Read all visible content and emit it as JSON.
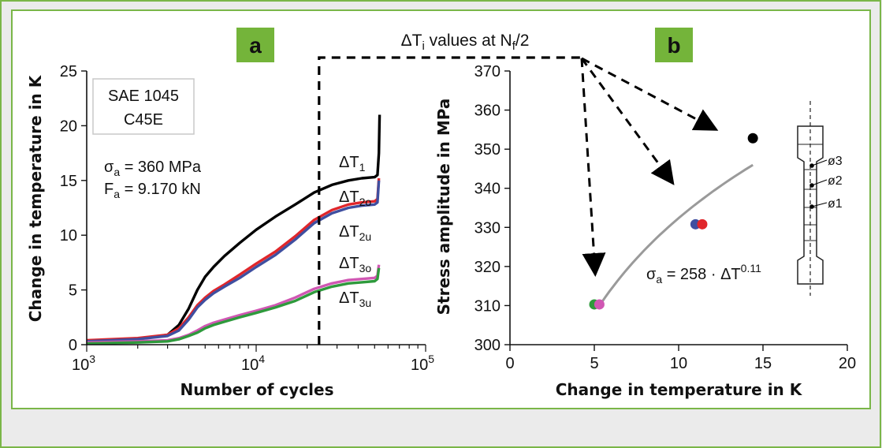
{
  "figure": {
    "header": "ΔTi values at Nf/2",
    "colors": {
      "frame_border": "#7ab648",
      "panel_bg": "#ffffff",
      "outer_bg": "#ebebeb",
      "badge_bg": "#74b43a",
      "badge_text": "#ffffff",
      "black": "#000000",
      "red": "#e0262b",
      "blue": "#3f4fa0",
      "green": "#2e9a3c",
      "magenta": "#d057b3",
      "fit_line": "#9a9a9a"
    }
  },
  "panel_a": {
    "badge": "a",
    "material_line1": "SAE 1045",
    "material_line2": "C45E",
    "sigma_text": "σa = 360 MPa",
    "force_text": "Fa = 9.170 kN"
  },
  "panel_b": {
    "badge": "b",
    "specimen_labels": [
      "ø3",
      "ø2",
      "ø1"
    ]
  },
  "chart_data": [
    {
      "type": "line",
      "panel": "a",
      "xlabel": "Number of cycles",
      "ylabel": "Change in temperature in K",
      "x_scale": "log",
      "xlim": [
        1000,
        100000
      ],
      "ylim": [
        0,
        25
      ],
      "x_ticks": [
        1000,
        10000,
        100000
      ],
      "x_tick_labels": [
        [
          "10",
          "3"
        ],
        [
          "10",
          "4"
        ],
        [
          "10",
          "5"
        ]
      ],
      "y_ticks": [
        0,
        5,
        10,
        15,
        20,
        25
      ],
      "vertical_marker_x": 23500,
      "series": [
        {
          "name": "ΔT1",
          "color_key": "black",
          "x": [
            1000,
            2000,
            3000,
            3500,
            4000,
            4500,
            5000,
            5600,
            6500,
            8000,
            10000,
            13000,
            17000,
            22000,
            28000,
            35000,
            42000,
            50000,
            52000,
            53000,
            53500
          ],
          "y": [
            0.3,
            0.5,
            0.9,
            1.8,
            3.3,
            5.0,
            6.2,
            7.1,
            8.1,
            9.3,
            10.5,
            11.7,
            12.8,
            13.9,
            14.6,
            15.0,
            15.2,
            15.3,
            15.5,
            17.5,
            21.0
          ]
        },
        {
          "name": "ΔT2o",
          "color_key": "red",
          "x": [
            1000,
            2000,
            3000,
            3500,
            4000,
            4500,
            5000,
            5600,
            6500,
            8000,
            10000,
            13000,
            17000,
            22000,
            28000,
            35000,
            42000,
            50000,
            52000,
            53000
          ],
          "y": [
            0.4,
            0.6,
            0.9,
            1.5,
            2.5,
            3.6,
            4.3,
            4.9,
            5.5,
            6.4,
            7.4,
            8.5,
            9.9,
            11.4,
            12.3,
            12.8,
            13.0,
            13.1,
            13.3,
            15.2
          ]
        },
        {
          "name": "ΔT2u",
          "color_key": "blue",
          "x": [
            1000,
            2000,
            3000,
            3500,
            4000,
            4500,
            5000,
            5600,
            6500,
            8000,
            10000,
            13000,
            17000,
            22000,
            28000,
            35000,
            42000,
            50000,
            52000,
            53000
          ],
          "y": [
            0.3,
            0.5,
            0.8,
            1.3,
            2.3,
            3.4,
            4.1,
            4.7,
            5.3,
            6.1,
            7.1,
            8.2,
            9.6,
            11.1,
            12.0,
            12.5,
            12.7,
            12.8,
            13.0,
            15.0
          ]
        },
        {
          "name": "ΔT3o",
          "color_key": "magenta",
          "x": [
            1000,
            2000,
            3000,
            3500,
            4000,
            4500,
            5000,
            5600,
            6500,
            8000,
            10000,
            13000,
            17000,
            22000,
            28000,
            35000,
            42000,
            50000,
            52000,
            53000
          ],
          "y": [
            0.2,
            0.3,
            0.4,
            0.6,
            0.9,
            1.3,
            1.7,
            2.0,
            2.3,
            2.7,
            3.1,
            3.6,
            4.3,
            5.1,
            5.6,
            5.9,
            6.0,
            6.1,
            6.3,
            7.3
          ]
        },
        {
          "name": "ΔT3u",
          "color_key": "green",
          "x": [
            1000,
            2000,
            3000,
            3500,
            4000,
            4500,
            5000,
            5600,
            6500,
            8000,
            10000,
            13000,
            17000,
            22000,
            28000,
            35000,
            42000,
            50000,
            52000,
            53000
          ],
          "y": [
            0.1,
            0.2,
            0.3,
            0.5,
            0.8,
            1.1,
            1.5,
            1.8,
            2.1,
            2.5,
            2.9,
            3.4,
            4.0,
            4.8,
            5.3,
            5.6,
            5.7,
            5.8,
            6.0,
            7.0
          ]
        }
      ]
    },
    {
      "type": "scatter",
      "panel": "b",
      "xlabel": "Change in temperature in K",
      "ylabel": "Stress amplitude in MPa",
      "xlim": [
        0,
        20
      ],
      "ylim": [
        300,
        370
      ],
      "x_ticks": [
        0,
        5,
        10,
        15,
        20
      ],
      "y_ticks": [
        300,
        310,
        320,
        330,
        340,
        350,
        360,
        370
      ],
      "points": [
        {
          "x": 14.4,
          "y": 352.8,
          "color_key": "black"
        },
        {
          "x": 11.0,
          "y": 330.8,
          "color_key": "blue"
        },
        {
          "x": 11.4,
          "y": 330.8,
          "color_key": "red"
        },
        {
          "x": 5.0,
          "y": 310.3,
          "color_key": "green"
        },
        {
          "x": 5.3,
          "y": 310.3,
          "color_key": "magenta"
        }
      ],
      "fit": {
        "label": "σa = 258 · ΔT0.11",
        "coef": 258,
        "exponent": 0.11,
        "x_range": [
          5.2,
          14.4
        ]
      }
    }
  ]
}
